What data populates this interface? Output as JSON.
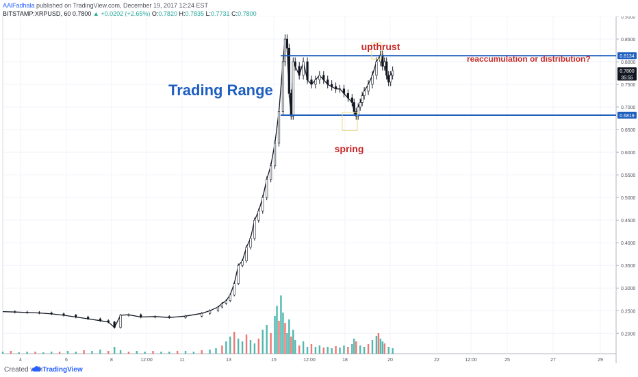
{
  "header": {
    "author": "AAlFadhala",
    "published": "published on TradingView.com, December 19, 2017 12:24 EST",
    "symbol": "BITSTAMP:XRPUSD, 60",
    "last": "0.7800",
    "change": "▲ +0.0202 (+2.65%)",
    "o_label": "O:",
    "o_val": "0.7820",
    "h_label": "H:",
    "h_val": "0.7835",
    "l_label": "L:",
    "l_val": "0.7731",
    "c_label": "C:",
    "c_val": "0.7800"
  },
  "footer": {
    "created_with": "Created with",
    "brand": "TradingView",
    "brand_icon": "tradingview-cloud-icon"
  },
  "colors": {
    "candle": "#131722",
    "volume_up": "#26a69a",
    "volume_down": "#ef5350",
    "range_line": "#1f5fbf",
    "annotation_blue": "#1f5fbf",
    "annotation_red": "#c62828",
    "box": "#e8d98a",
    "grid": "#f0f3fa"
  },
  "chart_data": {
    "type": "candlestick",
    "title": "",
    "xlabel": "",
    "ylabel": "",
    "ylim": [
      0.155,
      0.9
    ],
    "grid": true,
    "y_ticks": [
      "0.9000",
      "0.8500",
      "0.8000",
      "0.7500",
      "0.7000",
      "0.6500",
      "0.6000",
      "0.5500",
      "0.5000",
      "0.4500",
      "0.4000",
      "0.3500",
      "0.3000",
      "0.2500",
      "0.2000"
    ],
    "y_tick_values": [
      0.9,
      0.85,
      0.8,
      0.75,
      0.7,
      0.65,
      0.6,
      0.55,
      0.5,
      0.45,
      0.4,
      0.35,
      0.3,
      0.25,
      0.2
    ],
    "x_ticks": [
      "4",
      "6",
      "8",
      "12:00",
      "11",
      "13",
      "15",
      "12:00",
      "18",
      "20",
      "22",
      "12:00",
      "25",
      "27",
      "29"
    ],
    "price_labels": [
      {
        "value": 0.8134,
        "text": "0.8134",
        "style": "blue"
      },
      {
        "value": 0.78,
        "text": "0.7800",
        "style": "dark"
      },
      {
        "value": 0.766,
        "text": "35:55",
        "style": "dark"
      },
      {
        "value": 0.6819,
        "text": "0.6819",
        "style": "blue"
      }
    ],
    "horizontal_lines": [
      {
        "value": 0.8134,
        "start_x": "15"
      },
      {
        "value": 0.6819,
        "start_x": "15"
      }
    ],
    "annotations": [
      {
        "text": "Trading Range",
        "color": "blue"
      },
      {
        "text": "upthrust",
        "color": "red"
      },
      {
        "text": "spring",
        "color": "red"
      },
      {
        "text": "reaccumulation or distribution?",
        "color": "red"
      }
    ],
    "close_path": [
      [
        0,
        0.248
      ],
      [
        6,
        0.247
      ],
      [
        12,
        0.246
      ],
      [
        18,
        0.245
      ],
      [
        24,
        0.243
      ],
      [
        30,
        0.24
      ],
      [
        36,
        0.236
      ],
      [
        42,
        0.232
      ],
      [
        48,
        0.228
      ],
      [
        52,
        0.225
      ],
      [
        55,
        0.213
      ],
      [
        58,
        0.24
      ],
      [
        62,
        0.241
      ],
      [
        68,
        0.236
      ],
      [
        75,
        0.237
      ],
      [
        82,
        0.235
      ],
      [
        90,
        0.238
      ],
      [
        98,
        0.244
      ],
      [
        102,
        0.25
      ],
      [
        106,
        0.258
      ],
      [
        108,
        0.266
      ],
      [
        110,
        0.272
      ],
      [
        112,
        0.285
      ],
      [
        114,
        0.31
      ],
      [
        116,
        0.35
      ],
      [
        118,
        0.36
      ],
      [
        120,
        0.39
      ],
      [
        122,
        0.41
      ],
      [
        124,
        0.45
      ],
      [
        126,
        0.47
      ],
      [
        128,
        0.5
      ],
      [
        130,
        0.54
      ],
      [
        132,
        0.57
      ],
      [
        134,
        0.62
      ],
      [
        136,
        0.69
      ],
      [
        138,
        0.8
      ],
      [
        139,
        0.85
      ],
      [
        140,
        0.83
      ],
      [
        141,
        0.73
      ],
      [
        142,
        0.68
      ],
      [
        143,
        0.8
      ],
      [
        144,
        0.79
      ],
      [
        146,
        0.77
      ],
      [
        148,
        0.8
      ],
      [
        150,
        0.76
      ],
      [
        152,
        0.75
      ],
      [
        154,
        0.76
      ],
      [
        156,
        0.77
      ],
      [
        158,
        0.76
      ],
      [
        160,
        0.75
      ],
      [
        162,
        0.745
      ],
      [
        164,
        0.74
      ],
      [
        166,
        0.74
      ],
      [
        168,
        0.73
      ],
      [
        170,
        0.72
      ],
      [
        172,
        0.71
      ],
      [
        173,
        0.69
      ],
      [
        174,
        0.68
      ],
      [
        175,
        0.7
      ],
      [
        176,
        0.71
      ],
      [
        177,
        0.725
      ],
      [
        178,
        0.735
      ],
      [
        180,
        0.75
      ],
      [
        182,
        0.77
      ],
      [
        184,
        0.8
      ],
      [
        186,
        0.815
      ],
      [
        187,
        0.79
      ],
      [
        188,
        0.8
      ],
      [
        189,
        0.77
      ],
      [
        190,
        0.755
      ],
      [
        191,
        0.77
      ],
      [
        192,
        0.78
      ]
    ],
    "x_domain": [
      0,
      302
    ],
    "volume": [
      [
        0,
        0.03
      ],
      [
        4,
        0.04
      ],
      [
        8,
        0.02
      ],
      [
        12,
        0.03
      ],
      [
        16,
        0.03
      ],
      [
        20,
        0.02
      ],
      [
        24,
        0.03
      ],
      [
        28,
        0.03
      ],
      [
        32,
        0.04
      ],
      [
        36,
        0.03
      ],
      [
        40,
        0.05
      ],
      [
        44,
        0.04
      ],
      [
        48,
        0.06
      ],
      [
        52,
        0.04
      ],
      [
        55,
        0.1
      ],
      [
        58,
        0.05
      ],
      [
        62,
        0.03
      ],
      [
        66,
        0.04
      ],
      [
        70,
        0.03
      ],
      [
        74,
        0.04
      ],
      [
        78,
        0.03
      ],
      [
        82,
        0.03
      ],
      [
        86,
        0.04
      ],
      [
        90,
        0.04
      ],
      [
        94,
        0.03
      ],
      [
        98,
        0.05
      ],
      [
        102,
        0.06
      ],
      [
        105,
        0.08
      ],
      [
        108,
        0.12
      ],
      [
        110,
        0.18
      ],
      [
        112,
        0.25
      ],
      [
        114,
        0.32
      ],
      [
        116,
        0.22
      ],
      [
        118,
        0.18
      ],
      [
        120,
        0.28
      ],
      [
        122,
        0.2
      ],
      [
        124,
        0.15
      ],
      [
        126,
        0.22
      ],
      [
        128,
        0.35
      ],
      [
        130,
        0.42
      ],
      [
        132,
        0.3
      ],
      [
        134,
        0.55
      ],
      [
        135,
        0.7
      ],
      [
        136,
        0.48
      ],
      [
        137,
        0.85
      ],
      [
        138,
        0.6
      ],
      [
        139,
        0.45
      ],
      [
        140,
        0.3
      ],
      [
        141,
        0.5
      ],
      [
        142,
        0.25
      ],
      [
        143,
        0.35
      ],
      [
        144,
        0.2
      ],
      [
        146,
        0.12
      ],
      [
        148,
        0.18
      ],
      [
        150,
        0.1
      ],
      [
        152,
        0.14
      ],
      [
        154,
        0.1
      ],
      [
        156,
        0.12
      ],
      [
        158,
        0.09
      ],
      [
        160,
        0.1
      ],
      [
        162,
        0.08
      ],
      [
        164,
        0.11
      ],
      [
        166,
        0.09
      ],
      [
        168,
        0.12
      ],
      [
        170,
        0.1
      ],
      [
        172,
        0.14
      ],
      [
        173,
        0.22
      ],
      [
        174,
        0.18
      ],
      [
        176,
        0.12
      ],
      [
        178,
        0.1
      ],
      [
        180,
        0.14
      ],
      [
        182,
        0.2
      ],
      [
        184,
        0.26
      ],
      [
        185,
        0.3
      ],
      [
        186,
        0.22
      ],
      [
        187,
        0.18
      ],
      [
        188,
        0.15
      ],
      [
        190,
        0.1
      ],
      [
        192,
        0.08
      ]
    ]
  }
}
